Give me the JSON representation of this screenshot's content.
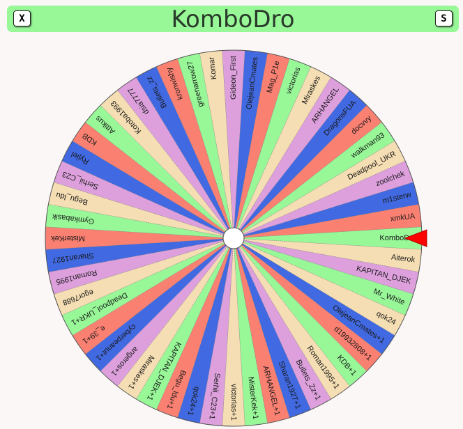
{
  "header": {
    "title": "KomboDro",
    "close_label": "X",
    "spin_label": "S"
  },
  "palette": [
    "#98f898",
    "#f5deb3",
    "#dda0dd",
    "#4169e1",
    "#fa8072"
  ],
  "pointer_color": "#ff0000",
  "wheel": {
    "segments": [
      {
        "label": "KomboDro",
        "color": "#98f898"
      },
      {
        "label": "Aiterok",
        "color": "#f5deb3"
      },
      {
        "label": "KAPITAN_DJEK",
        "color": "#dda0dd"
      },
      {
        "label": "Mr_White",
        "color": "#98f898"
      },
      {
        "label": "qok24",
        "color": "#f5deb3"
      },
      {
        "label": "OlejeanCmates+1",
        "color": "#4169e1"
      },
      {
        "label": "d19932808+1",
        "color": "#fa8072"
      },
      {
        "label": "KDB+1",
        "color": "#98f898"
      },
      {
        "label": "Roman1995+1",
        "color": "#f5deb3"
      },
      {
        "label": "Bullets_Zz+1",
        "color": "#dda0dd"
      },
      {
        "label": "Sharan1927+1",
        "color": "#4169e1"
      },
      {
        "label": "ARHANGEL+1",
        "color": "#fa8072"
      },
      {
        "label": "MisterKek+1",
        "color": "#98f898"
      },
      {
        "label": "victorias+1",
        "color": "#f5deb3"
      },
      {
        "label": "Serhii_C23+1",
        "color": "#dda0dd"
      },
      {
        "label": "qok24+1",
        "color": "#4169e1"
      },
      {
        "label": "Begu_ldu+1",
        "color": "#fa8072"
      },
      {
        "label": "KAPITAN_DJEK+1",
        "color": "#98f898"
      },
      {
        "label": "Miraskes+1",
        "color": "#f5deb3"
      },
      {
        "label": "angeros+1",
        "color": "#dda0dd"
      },
      {
        "label": "cyberpeanut+1",
        "color": "#4169e1"
      },
      {
        "label": "e_39+1",
        "color": "#fa8072"
      },
      {
        "label": "Deadpool_UKR+1",
        "color": "#98f898"
      },
      {
        "label": "egor7688",
        "color": "#f5deb3"
      },
      {
        "label": "Roman1995",
        "color": "#dda0dd"
      },
      {
        "label": "Sharan1927",
        "color": "#4169e1"
      },
      {
        "label": "MisterKek",
        "color": "#fa8072"
      },
      {
        "label": "Gymkabasik",
        "color": "#98f898"
      },
      {
        "label": "Begu_ldu",
        "color": "#f5deb3"
      },
      {
        "label": "Serhii_C23",
        "color": "#dda0dd"
      },
      {
        "label": "Ryjiel",
        "color": "#4169e1"
      },
      {
        "label": "KDB",
        "color": "#fa8072"
      },
      {
        "label": "Attikus",
        "color": "#98f898"
      },
      {
        "label": "Kotoba1993",
        "color": "#f5deb3"
      },
      {
        "label": "dsia7777",
        "color": "#dda0dd"
      },
      {
        "label": "Bullets_zz",
        "color": "#4169e1"
      },
      {
        "label": "kronwishy",
        "color": "#fa8072"
      },
      {
        "label": "greenarrow27",
        "color": "#98f898"
      },
      {
        "label": "Komar",
        "color": "#f5deb3"
      },
      {
        "label": "Gideon_First",
        "color": "#dda0dd"
      },
      {
        "label": "OlejeanCmates",
        "color": "#4169e1"
      },
      {
        "label": "Mag_P1e",
        "color": "#fa8072"
      },
      {
        "label": "victorias",
        "color": "#98f898"
      },
      {
        "label": "Miraskes",
        "color": "#f5deb3"
      },
      {
        "label": "ARHANGEL",
        "color": "#dda0dd"
      },
      {
        "label": "DragonsFUA",
        "color": "#4169e1"
      },
      {
        "label": "docvvy",
        "color": "#fa8072"
      },
      {
        "label": "walkman93",
        "color": "#98f898"
      },
      {
        "label": "Deadpool_UKR",
        "color": "#f5deb3"
      },
      {
        "label": "zoolchek",
        "color": "#dda0dd"
      },
      {
        "label": "m1sterw",
        "color": "#4169e1"
      },
      {
        "label": "xmkUA",
        "color": "#fa8072"
      }
    ]
  }
}
